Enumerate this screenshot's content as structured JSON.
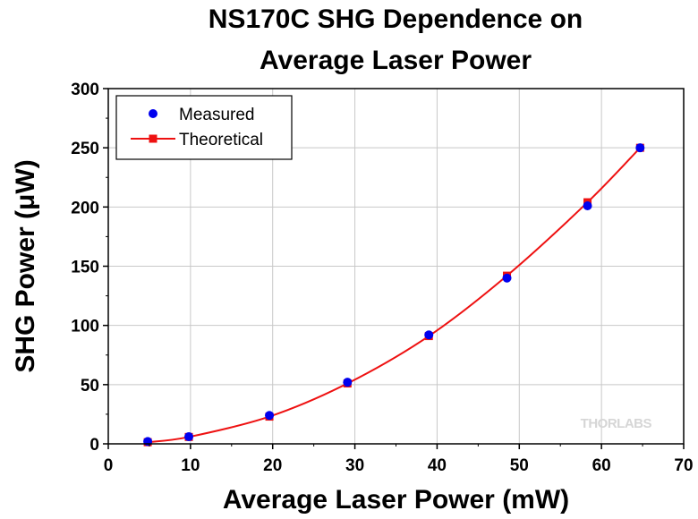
{
  "chart_data": {
    "type": "scatter",
    "title_lines": [
      "NS170C SHG Dependence on",
      "Average Laser Power"
    ],
    "xlabel": "Average Laser Power (mW)",
    "ylabel": "SHG Power (μW)",
    "xlim": [
      0,
      70
    ],
    "ylim": [
      0,
      300
    ],
    "xticks": [
      0,
      10,
      20,
      30,
      40,
      50,
      60,
      70
    ],
    "yticks": [
      0,
      50,
      100,
      150,
      200,
      250,
      300
    ],
    "grid": true,
    "legend_position": "top-left",
    "watermark": "THORLABS",
    "series": [
      {
        "name": "Measured",
        "marker": "circle",
        "color": "#0000ee",
        "x": [
          4.8,
          9.8,
          19.6,
          29.1,
          39.0,
          48.5,
          58.3,
          64.7
        ],
        "y": [
          2,
          6,
          24,
          52,
          92,
          140,
          201,
          250
        ]
      },
      {
        "name": "Theoretical",
        "marker": "square",
        "line": true,
        "color": "#ee1111",
        "x": [
          4.8,
          9.8,
          19.6,
          29.1,
          39.0,
          48.5,
          58.3,
          64.7
        ],
        "y": [
          1.4,
          5.8,
          23,
          51,
          91,
          142,
          204,
          250
        ]
      }
    ]
  }
}
